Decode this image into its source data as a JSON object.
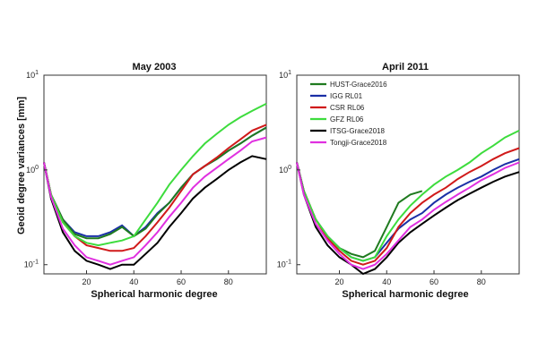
{
  "ylabel": "Geoid degree variances [mm]",
  "legend": [
    {
      "name": "HUST-Grace2016",
      "color": "#1f7a1f"
    },
    {
      "name": "IGG RL01",
      "color": "#1a2fa6"
    },
    {
      "name": "CSR RL06",
      "color": "#d01a1a"
    },
    {
      "name": "GFZ RL06",
      "color": "#3ddc3d"
    },
    {
      "name": "ITSG-Grace2018",
      "color": "#000000"
    },
    {
      "name": "Tongji-Grace2018",
      "color": "#e030e0"
    }
  ],
  "chart_data": [
    {
      "type": "line",
      "title": "May 2003",
      "xlabel": "Spherical harmonic degree",
      "ylabel": "Geoid degree variances [mm]",
      "yscale": "log",
      "xlim": [
        2,
        96
      ],
      "ylim": [
        0.08,
        10
      ],
      "xticks": [
        20,
        40,
        60,
        80
      ],
      "yticks": [
        {
          "value": 0.1,
          "label": "10"
        },
        {
          "value": 1,
          "label": "10"
        },
        {
          "value": 10,
          "label": "10"
        }
      ],
      "ytick_exponents": [
        "-1",
        "0",
        "1"
      ],
      "grid": false,
      "x": [
        2,
        5,
        10,
        15,
        20,
        25,
        30,
        35,
        40,
        45,
        50,
        55,
        60,
        65,
        70,
        75,
        80,
        85,
        90,
        96
      ],
      "series": [
        {
          "name": "IGG RL01",
          "color": "#1a2fa6",
          "values": [
            1.2,
            0.55,
            0.3,
            0.22,
            0.2,
            0.2,
            0.22,
            0.26,
            0.2,
            0.25,
            0.35,
            0.45,
            0.65,
            0.9,
            1.1,
            1.3,
            1.6,
            1.9,
            2.3,
            2.8
          ]
        },
        {
          "name": "HUST-Grace2016",
          "color": "#1f7a1f",
          "values": [
            1.2,
            0.55,
            0.3,
            0.21,
            0.19,
            0.19,
            0.21,
            0.25,
            0.2,
            0.24,
            0.34,
            0.45,
            0.65,
            0.9,
            1.1,
            1.3,
            1.6,
            1.9,
            2.3,
            2.8
          ]
        },
        {
          "name": "CSR RL06",
          "color": "#d01a1a",
          "values": [
            1.2,
            0.55,
            0.28,
            0.2,
            0.16,
            0.15,
            0.14,
            0.14,
            0.15,
            0.2,
            0.28,
            0.4,
            0.6,
            0.9,
            1.1,
            1.35,
            1.7,
            2.1,
            2.6,
            3.0
          ]
        },
        {
          "name": "GFZ RL06",
          "color": "#3ddc3d",
          "values": [
            1.2,
            0.55,
            0.28,
            0.2,
            0.17,
            0.16,
            0.17,
            0.18,
            0.2,
            0.3,
            0.45,
            0.7,
            1.0,
            1.4,
            1.9,
            2.4,
            3.0,
            3.6,
            4.2,
            5.0
          ]
        },
        {
          "name": "ITSG-Grace2018",
          "color": "#000000",
          "values": [
            1.2,
            0.5,
            0.22,
            0.14,
            0.11,
            0.1,
            0.09,
            0.1,
            0.1,
            0.13,
            0.17,
            0.25,
            0.35,
            0.5,
            0.65,
            0.8,
            1.0,
            1.2,
            1.4,
            1.3
          ]
        },
        {
          "name": "Tongji-Grace2018",
          "color": "#e030e0",
          "values": [
            1.2,
            0.52,
            0.24,
            0.16,
            0.12,
            0.11,
            0.1,
            0.11,
            0.12,
            0.16,
            0.22,
            0.32,
            0.45,
            0.65,
            0.85,
            1.05,
            1.3,
            1.6,
            2.0,
            2.2
          ]
        }
      ]
    },
    {
      "type": "line",
      "title": "April 2011",
      "xlabel": "Spherical harmonic degree",
      "yscale": "log",
      "xlim": [
        2,
        96
      ],
      "ylim": [
        0.08,
        10
      ],
      "xticks": [
        20,
        40,
        60,
        80
      ],
      "yticks": [
        {
          "value": 0.1,
          "label": "10"
        },
        {
          "value": 1,
          "label": "10"
        },
        {
          "value": 10,
          "label": "10"
        }
      ],
      "ytick_exponents": [
        "-1",
        "0",
        "1"
      ],
      "grid": false,
      "x": [
        2,
        5,
        10,
        15,
        20,
        25,
        30,
        35,
        40,
        45,
        50,
        55,
        60,
        65,
        70,
        75,
        80,
        85,
        90,
        96
      ],
      "series": [
        {
          "name": "HUST-Grace2016",
          "color": "#1f7a1f",
          "values": [
            1.2,
            0.6,
            0.3,
            0.2,
            0.15,
            0.13,
            0.12,
            0.14,
            0.25,
            0.45,
            0.55,
            0.6,
            null,
            null,
            null,
            null,
            null,
            null,
            null,
            null
          ]
        },
        {
          "name": "IGG RL01",
          "color": "#1a2fa6",
          "values": [
            1.2,
            0.6,
            0.3,
            0.2,
            0.15,
            0.12,
            0.11,
            0.12,
            0.17,
            0.24,
            0.3,
            0.35,
            0.45,
            0.55,
            0.65,
            0.75,
            0.85,
            1.0,
            1.15,
            1.3
          ]
        },
        {
          "name": "CSR RL06",
          "color": "#d01a1a",
          "values": [
            1.2,
            0.6,
            0.3,
            0.19,
            0.14,
            0.11,
            0.1,
            0.11,
            0.15,
            0.25,
            0.35,
            0.45,
            0.55,
            0.65,
            0.8,
            0.95,
            1.1,
            1.3,
            1.5,
            1.7
          ]
        },
        {
          "name": "GFZ RL06",
          "color": "#3ddc3d",
          "values": [
            1.2,
            0.6,
            0.3,
            0.2,
            0.15,
            0.12,
            0.11,
            0.12,
            0.2,
            0.3,
            0.42,
            0.55,
            0.7,
            0.85,
            1.0,
            1.2,
            1.5,
            1.8,
            2.2,
            2.6
          ]
        },
        {
          "name": "ITSG-Grace2018",
          "color": "#000000",
          "values": [
            1.2,
            0.55,
            0.25,
            0.16,
            0.12,
            0.1,
            0.08,
            0.09,
            0.12,
            0.17,
            0.22,
            0.27,
            0.33,
            0.4,
            0.48,
            0.56,
            0.65,
            0.75,
            0.85,
            0.95
          ]
        },
        {
          "name": "Tongji-Grace2018",
          "color": "#e030e0",
          "values": [
            1.2,
            0.55,
            0.27,
            0.18,
            0.13,
            0.1,
            0.09,
            0.1,
            0.13,
            0.18,
            0.25,
            0.3,
            0.38,
            0.46,
            0.55,
            0.65,
            0.78,
            0.9,
            1.05,
            1.2
          ]
        }
      ]
    }
  ]
}
